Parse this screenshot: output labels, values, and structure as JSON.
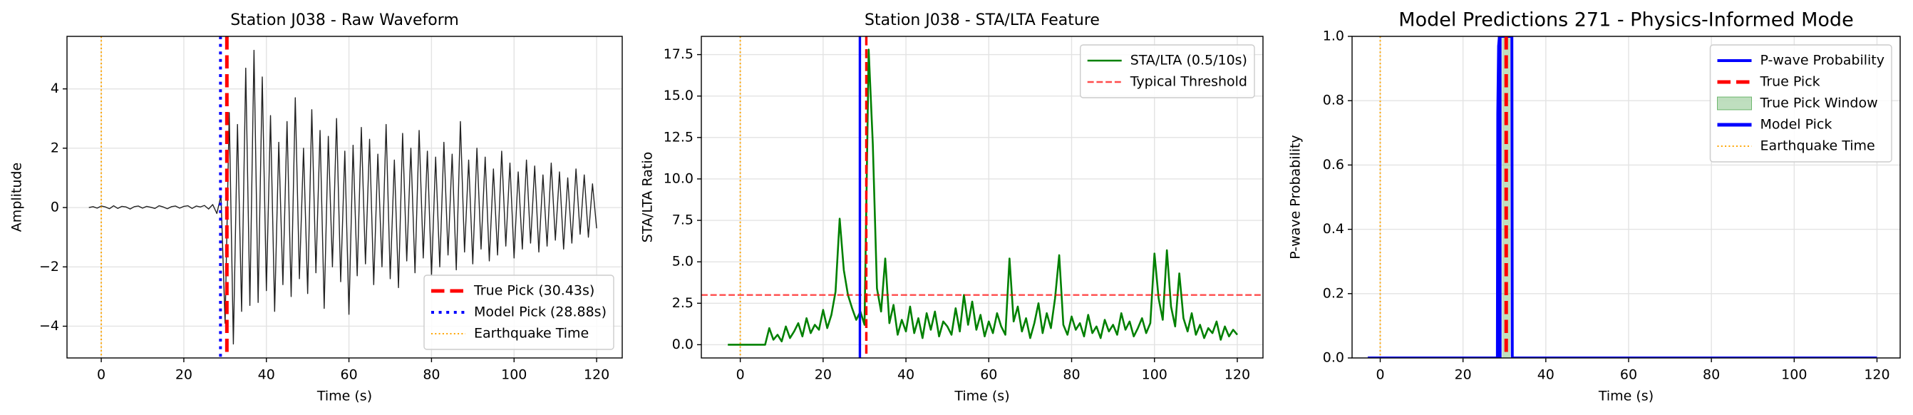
{
  "chart_data": [
    {
      "type": "line",
      "title": "Station J038 - Raw Waveform",
      "xlabel": "Time (s)",
      "ylabel": "Amplitude",
      "xlim": [
        -8.3,
        126.2
      ],
      "ylim": [
        -5.07,
        5.77
      ],
      "xticks": [
        0,
        20,
        40,
        60,
        80,
        100,
        120
      ],
      "yticks": [
        {
          "value": -4,
          "label": "−4"
        },
        {
          "value": -2,
          "label": "−2"
        },
        0,
        2,
        4
      ],
      "grid": true,
      "legend": "lower right",
      "x": [
        -3,
        -2,
        -1,
        0,
        1,
        2,
        3,
        4,
        5,
        6,
        7,
        8,
        9,
        10,
        11,
        12,
        13,
        14,
        15,
        16,
        17,
        18,
        19,
        20,
        21,
        22,
        23,
        24,
        25,
        26,
        27,
        28,
        29,
        30,
        31,
        32,
        33,
        34,
        35,
        36,
        37,
        38,
        39,
        40,
        41,
        42,
        43,
        44,
        45,
        46,
        47,
        48,
        49,
        50,
        51,
        52,
        53,
        54,
        55,
        56,
        57,
        58,
        59,
        60,
        61,
        62,
        63,
        64,
        65,
        66,
        67,
        68,
        69,
        70,
        71,
        72,
        73,
        74,
        75,
        76,
        77,
        78,
        79,
        80,
        81,
        82,
        83,
        84,
        85,
        86,
        87,
        88,
        89,
        90,
        91,
        92,
        93,
        94,
        95,
        96,
        97,
        98,
        99,
        100,
        101,
        102,
        103,
        104,
        105,
        106,
        107,
        108,
        109,
        110,
        111,
        112,
        113,
        114,
        115,
        116,
        117,
        118,
        119,
        120
      ],
      "series": [
        {
          "color": "#222222",
          "linewidth": 1.4,
          "linestyle": "solid",
          "values": [
            0.0,
            0.03,
            -0.02,
            0.05,
            0.02,
            -0.04,
            0.06,
            -0.03,
            0.04,
            0.02,
            -0.05,
            0.03,
            0.05,
            -0.02,
            0.04,
            0.01,
            -0.03,
            0.06,
            0.02,
            -0.04,
            0.03,
            0.05,
            -0.02,
            0.04,
            0.06,
            -0.03,
            0.05,
            0.02,
            0.07,
            -0.05,
            0.1,
            -0.2,
            0.4,
            -3.9,
            3.2,
            -4.6,
            2.8,
            -3.5,
            4.7,
            -3.3,
            5.3,
            -3.2,
            4.4,
            -2.8,
            3.1,
            -3.5,
            2.2,
            -2.6,
            2.9,
            -3.0,
            3.7,
            -2.4,
            2.0,
            -2.9,
            3.3,
            -2.2,
            2.6,
            -3.4,
            2.4,
            -2.0,
            3.0,
            -2.5,
            1.9,
            -3.6,
            2.1,
            -2.3,
            2.7,
            -1.9,
            2.3,
            -2.6,
            1.8,
            -2.0,
            2.8,
            -2.4,
            1.6,
            -2.7,
            2.5,
            -1.8,
            2.0,
            -2.2,
            2.6,
            -1.7,
            1.9,
            -2.3,
            1.7,
            -2.0,
            2.2,
            -1.6,
            1.8,
            -2.1,
            2.9,
            -1.5,
            1.6,
            -1.9,
            2.0,
            -1.4,
            1.7,
            -1.8,
            1.3,
            -1.6,
            1.9,
            -1.3,
            1.5,
            -1.7,
            1.2,
            -1.4,
            1.6,
            -1.2,
            1.4,
            -1.5,
            1.1,
            -1.3,
            1.5,
            -1.1,
            1.2,
            -1.4,
            1.0,
            -1.2,
            1.3,
            -0.9,
            1.1,
            -1.0,
            0.8,
            -0.7
          ]
        }
      ],
      "refs": [
        {
          "name": "True Pick (30.43s)",
          "vline": 30.43,
          "color": "#ff0000",
          "linestyle": "dashed",
          "linewidth": 5
        },
        {
          "name": "Model Pick (28.88s)",
          "vline": 28.88,
          "color": "#0000ff",
          "linestyle": "dotted",
          "linewidth": 4
        },
        {
          "name": "Earthquake Time",
          "vline": 0,
          "color": "#ffa500",
          "linestyle": "dotted",
          "linewidth": 2
        }
      ]
    },
    {
      "type": "line",
      "title": "Station J038 - STA/LTA Feature",
      "xlabel": "Time (s)",
      "ylabel": "STA/LTA Ratio",
      "xlim": [
        -9.4,
        126.2
      ],
      "ylim": [
        -0.8,
        18.6
      ],
      "xticks": [
        0,
        20,
        40,
        60,
        80,
        100,
        120
      ],
      "yticks": [
        {
          "value": 0,
          "label": "0.0"
        },
        {
          "value": 2.5,
          "label": "2.5"
        },
        {
          "value": 5,
          "label": "5.0"
        },
        {
          "value": 7.5,
          "label": "7.5"
        },
        {
          "value": 10,
          "label": "10.0"
        },
        {
          "value": 12.5,
          "label": "12.5"
        },
        {
          "value": 15,
          "label": "15.0"
        },
        {
          "value": 17.5,
          "label": "17.5"
        }
      ],
      "grid": true,
      "legend": "upper right",
      "x": [
        -3,
        -2,
        -1,
        0,
        1,
        2,
        3,
        4,
        5,
        6,
        7,
        8,
        9,
        10,
        11,
        12,
        13,
        14,
        15,
        16,
        17,
        18,
        19,
        20,
        21,
        22,
        23,
        24,
        25,
        26,
        27,
        28,
        29,
        30,
        31,
        32,
        33,
        34,
        35,
        36,
        37,
        38,
        39,
        40,
        41,
        42,
        43,
        44,
        45,
        46,
        47,
        48,
        49,
        50,
        51,
        52,
        53,
        54,
        55,
        56,
        57,
        58,
        59,
        60,
        61,
        62,
        63,
        64,
        65,
        66,
        67,
        68,
        69,
        70,
        71,
        72,
        73,
        74,
        75,
        76,
        77,
        78,
        79,
        80,
        81,
        82,
        83,
        84,
        85,
        86,
        87,
        88,
        89,
        90,
        91,
        92,
        93,
        94,
        95,
        96,
        97,
        98,
        99,
        100,
        101,
        102,
        103,
        104,
        105,
        106,
        107,
        108,
        109,
        110,
        111,
        112,
        113,
        114,
        115,
        116,
        117,
        118,
        119,
        120
      ],
      "series": [
        {
          "name": "STA/LTA (0.5/10s)",
          "color": "#008000",
          "linewidth": 2.6,
          "linestyle": "solid",
          "values": [
            0,
            0,
            0,
            0,
            0,
            0,
            0,
            0,
            0,
            0,
            1.0,
            0.3,
            0.6,
            0.2,
            1.1,
            0.4,
            0.8,
            1.3,
            0.5,
            1.6,
            0.7,
            1.2,
            0.9,
            2.1,
            1.0,
            1.8,
            3.2,
            7.6,
            4.5,
            3.0,
            2.2,
            1.5,
            2.0,
            1.2,
            17.8,
            12.1,
            3.4,
            2.0,
            5.2,
            1.3,
            2.4,
            0.6,
            1.5,
            0.8,
            2.3,
            0.7,
            1.6,
            0.4,
            1.9,
            0.9,
            2.0,
            0.5,
            1.4,
            1.1,
            0.6,
            2.2,
            0.8,
            3.0,
            1.2,
            2.6,
            0.9,
            1.8,
            0.5,
            1.4,
            0.7,
            1.9,
            1.1,
            0.6,
            5.2,
            1.4,
            2.3,
            0.8,
            1.6,
            0.4,
            1.3,
            2.5,
            0.7,
            1.9,
            1.0,
            2.8,
            5.4,
            1.2,
            0.6,
            1.7,
            0.9,
            1.3,
            0.5,
            1.8,
            0.7,
            1.1,
            0.4,
            1.5,
            0.8,
            1.2,
            0.6,
            1.9,
            0.9,
            1.4,
            0.5,
            1.0,
            1.6,
            0.7,
            1.3,
            5.5,
            2.8,
            1.5,
            5.7,
            2.3,
            1.1,
            4.3,
            1.6,
            0.8,
            1.9,
            0.6,
            1.2,
            0.4,
            1.0,
            0.7,
            1.4,
            0.3,
            1.1,
            0.5,
            0.9,
            0.6
          ]
        }
      ],
      "refs": [
        {
          "name": "Typical Threshold",
          "hline": 3.0,
          "color": "#ff0000",
          "alpha": 0.7,
          "linestyle": "dashed",
          "linewidth": 2.4
        },
        {
          "vline": 28.88,
          "color": "#0000ff",
          "linestyle": "solid",
          "linewidth": 3.4
        },
        {
          "vline": 30.43,
          "color": "#ff0000",
          "linestyle": "dashed",
          "linewidth": 3.4
        },
        {
          "vline": 0,
          "color": "#ffa500",
          "linestyle": "dotted",
          "linewidth": 2
        }
      ]
    },
    {
      "type": "line",
      "title": "Model Predictions 271 - Physics-Informed Mode",
      "xlabel": "Time (s)",
      "ylabel": "P-wave Probability",
      "xlim": [
        -6.8,
        125.6
      ],
      "ylim": [
        0,
        1
      ],
      "xticks": [
        0,
        20,
        40,
        60,
        80,
        100,
        120
      ],
      "yticks": [
        {
          "value": 0,
          "label": "0.0"
        },
        {
          "value": 0.2,
          "label": "0.2"
        },
        {
          "value": 0.4,
          "label": "0.4"
        },
        {
          "value": 0.6,
          "label": "0.6"
        },
        {
          "value": 0.8,
          "label": "0.8"
        },
        {
          "value": 1,
          "label": "1.0"
        }
      ],
      "grid": true,
      "legend": "upper right",
      "series": [
        {
          "name": "P-wave Probability",
          "color": "#0000ff",
          "linewidth": 4,
          "linestyle": "solid",
          "x": [
            -3,
            28.3,
            28.4,
            28.6,
            28.8,
            29,
            29.5,
            30,
            30.5,
            31,
            31.5,
            31.8,
            31.9,
            120
          ],
          "values": [
            0,
            0,
            0.76,
            0.97,
            1,
            1,
            1,
            1,
            1,
            1,
            1,
            1,
            0,
            0
          ]
        }
      ],
      "refs": [
        {
          "name": "True Pick",
          "vline": 30.43,
          "color": "#ff0000",
          "linestyle": "dashed",
          "linewidth": 5
        },
        {
          "name": "True Pick Window",
          "vspan": [
            29.43,
            31.43
          ],
          "color": "#008000",
          "alpha": 0.25
        },
        {
          "name": "Model Pick",
          "vline": 28.88,
          "color": "#0000ff",
          "linestyle": "solid",
          "linewidth": 5
        },
        {
          "name": "Earthquake Time",
          "vline": 0,
          "color": "#ffa500",
          "linestyle": "dotted",
          "linewidth": 2
        }
      ]
    }
  ]
}
